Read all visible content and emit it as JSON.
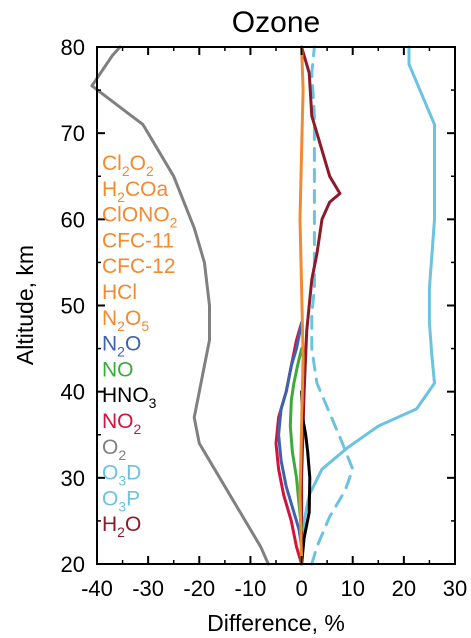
{
  "chart_data": {
    "type": "line",
    "title": "Ozone",
    "xlabel": "Difference, %",
    "ylabel": "Altitude, km",
    "xlim": [
      -40,
      30
    ],
    "ylim": [
      20,
      80
    ],
    "xticks": [
      -40,
      -30,
      -20,
      -10,
      0,
      10,
      20,
      30
    ],
    "yticks": [
      20,
      30,
      40,
      50,
      60,
      70,
      80
    ],
    "grid": false,
    "legend": {
      "placement": "left",
      "entries": [
        {
          "base": "Cl",
          "sub": "2",
          "rest": "O",
          "sub2": "2",
          "color": "#F28A30"
        },
        {
          "base": "H",
          "sub": "2",
          "rest": "COa",
          "sub2": "",
          "color": "#F28A30"
        },
        {
          "base": "ClONO",
          "sub": "2",
          "rest": "",
          "sub2": "",
          "color": "#F28A30"
        },
        {
          "base": "CFC-11",
          "sub": "",
          "rest": "",
          "sub2": "",
          "color": "#F28A30"
        },
        {
          "base": "CFC-12",
          "sub": "",
          "rest": "",
          "sub2": "",
          "color": "#F28A30"
        },
        {
          "base": "HCl",
          "sub": "",
          "rest": "",
          "sub2": "",
          "color": "#F28A30"
        },
        {
          "base": "N",
          "sub": "2",
          "rest": "O",
          "sub2": "5",
          "color": "#F28A30"
        },
        {
          "base": "N",
          "sub": "2",
          "rest": "O",
          "sub2": "",
          "color": "#3F62AD"
        },
        {
          "base": "NO",
          "sub": "",
          "rest": "",
          "sub2": "",
          "color": "#3DAA3D"
        },
        {
          "base": "HNO",
          "sub": "3",
          "rest": "",
          "sub2": "",
          "color": "#000000"
        },
        {
          "base": "NO",
          "sub": "2",
          "rest": "",
          "sub2": "",
          "color": "#D4123C"
        },
        {
          "base": "O",
          "sub": "2",
          "rest": "",
          "sub2": "",
          "color": "#808080"
        },
        {
          "base": "O",
          "sub": "3",
          "rest": "D",
          "sub2": "",
          "color": "#6CC3E0"
        },
        {
          "base": "O",
          "sub": "3",
          "rest": "P",
          "sub2": "",
          "color": "#6CC3E0"
        },
        {
          "base": "H",
          "sub": "2",
          "rest": "O",
          "sub2": "",
          "color": "#8B1A2B"
        }
      ]
    },
    "series": [
      {
        "name": "O2",
        "color": "#808080",
        "dash": false,
        "x": [
          -6.5,
          -8,
          -11,
          -14,
          -17,
          -20,
          -21,
          -20,
          -19,
          -18,
          -18,
          -19,
          -21,
          -25,
          -31,
          -41,
          -37,
          -35.5
        ],
        "y": [
          20,
          22,
          25,
          28,
          31,
          34,
          37,
          40,
          43,
          46,
          50,
          55,
          59,
          65,
          71,
          75.5,
          79,
          80
        ]
      },
      {
        "name": "O3D",
        "color": "#6CC3E0",
        "dash": false,
        "x": [
          0,
          0.5,
          1.5,
          4,
          9,
          15,
          22.5,
          26,
          25.5,
          25,
          25,
          25.5,
          26,
          26,
          26,
          26,
          21,
          21
        ],
        "y": [
          20,
          25,
          28,
          31,
          33.5,
          36,
          38,
          41,
          44,
          48,
          52,
          56,
          60,
          64,
          68,
          71,
          78,
          80
        ]
      },
      {
        "name": "O3P",
        "color": "#6CC3E0",
        "dash": true,
        "x": [
          2,
          3,
          5.5,
          8.5,
          10,
          8,
          5.5,
          3,
          2,
          2,
          2.5,
          2.5,
          2.5,
          2.5,
          2.5,
          2,
          2.5
        ],
        "y": [
          20,
          22,
          25.5,
          28.5,
          31,
          34,
          37.5,
          41,
          45,
          49,
          52,
          57,
          62,
          68,
          72,
          77,
          80
        ]
      },
      {
        "name": "H2O",
        "color": "#8B1A2B",
        "dash": false,
        "x": [
          0,
          0,
          0.5,
          1,
          1.5,
          2,
          3,
          4,
          5.5,
          7.5,
          5.5,
          3.5,
          2,
          1.5,
          0
        ],
        "y": [
          20,
          30,
          40,
          47,
          50,
          53,
          56,
          60,
          62,
          63,
          65,
          69,
          72,
          77,
          80
        ]
      },
      {
        "name": "NO2",
        "color": "#D4123C",
        "dash": false,
        "x": [
          0,
          -1,
          -2,
          -3.5,
          -4.5,
          -5,
          -4.5,
          -3,
          -2,
          -1,
          0
        ],
        "y": [
          20,
          22,
          25,
          28,
          31,
          34,
          37,
          40,
          43,
          46,
          48
        ]
      },
      {
        "name": "N2O",
        "color": "#3F62AD",
        "dash": false,
        "x": [
          0,
          -0.5,
          -1.5,
          -3,
          -4,
          -4.5,
          -4,
          -3,
          -2,
          -1,
          0
        ],
        "y": [
          22,
          24,
          26,
          29,
          32,
          35,
          38,
          40,
          43,
          45,
          48
        ]
      },
      {
        "name": "NO",
        "color": "#3DAA3D",
        "dash": false,
        "x": [
          0,
          -0.5,
          -1,
          -1.8,
          -2.2,
          -2,
          -1.5,
          -0.8,
          0
        ],
        "y": [
          24,
          27,
          30,
          33,
          36,
          39,
          41,
          43,
          45
        ]
      },
      {
        "name": "HNO3",
        "color": "#000000",
        "dash": false,
        "x": [
          0,
          0.5,
          1.5,
          1.6,
          1.2,
          0.8,
          0.2,
          0
        ],
        "y": [
          20,
          23,
          26,
          30,
          33,
          35,
          37,
          40
        ]
      },
      {
        "name": "orange species",
        "color": "#F28A30",
        "dash": false,
        "x": [
          0,
          -0.3,
          0,
          0.3,
          0,
          -0.3,
          0,
          0.3,
          0
        ],
        "y": [
          20,
          28,
          36,
          44,
          52,
          60,
          68,
          75,
          80
        ]
      }
    ]
  }
}
